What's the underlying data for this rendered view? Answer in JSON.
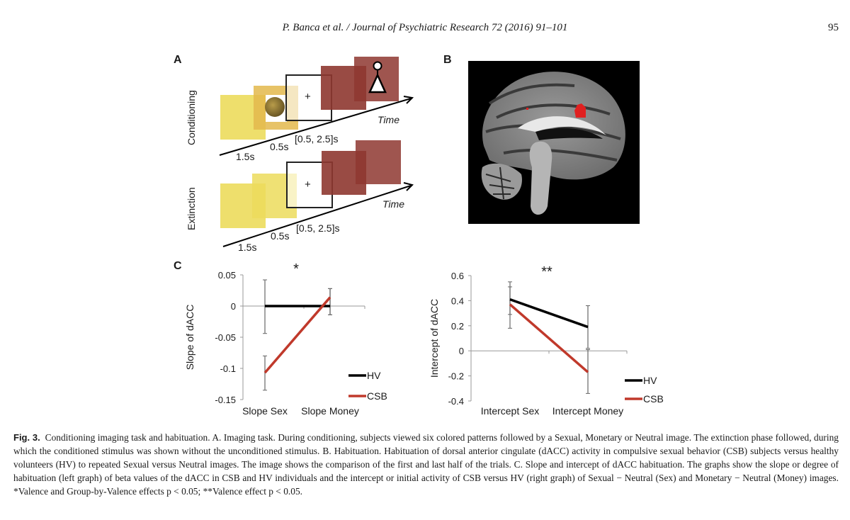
{
  "header": {
    "running_title": "P. Banca et al. / Journal of Psychiatric Research 72 (2016) 91–101",
    "page_number": "95"
  },
  "panel_a": {
    "letter": "A",
    "rows": [
      {
        "label": "Conditioning",
        "t1": "1.5s",
        "t2": "0.5s",
        "t3": "[0.5, 2.5]s",
        "time": "Time",
        "fixation": "+"
      },
      {
        "label": "Extinction",
        "t1": "1.5s",
        "t2": "0.5s",
        "t3": "[0.5, 2.5]s",
        "time": "Time",
        "fixation": "+"
      }
    ],
    "colors": {
      "yellow": "#ecdc5c",
      "gold": "#e3b84c",
      "maroon": "#8e3730"
    }
  },
  "panel_b": {
    "letter": "B"
  },
  "panel_c": {
    "letter": "C"
  },
  "chart_data": [
    {
      "type": "line",
      "title": "",
      "annotation": "*",
      "categories": [
        "Slope Sex",
        "Slope Money"
      ],
      "ylabel": "Slope of dACC",
      "xlabel": "",
      "ylim": [
        -0.15,
        0.05
      ],
      "yticks": [
        "0.05",
        "0",
        "-0.05",
        "-0.1",
        "-0.15"
      ],
      "ytick_values": [
        0.05,
        0,
        -0.05,
        -0.1,
        -0.15
      ],
      "legend_position": "bottom-right",
      "series": [
        {
          "name": "HV",
          "color": "#000000",
          "values": [
            0.0,
            0.0
          ],
          "err_low": [
            -0.044,
            -0.014
          ],
          "err_high": [
            0.042,
            0.028
          ]
        },
        {
          "name": "CSB",
          "color": "#c0392b",
          "values": [
            -0.107,
            0.014
          ],
          "err_low": [
            -0.135,
            -0.014
          ],
          "err_high": [
            -0.08,
            0.028
          ]
        }
      ]
    },
    {
      "type": "line",
      "title": "",
      "annotation": "**",
      "categories": [
        "Intercept Sex",
        "Intercept Money"
      ],
      "ylabel": "Intercept of dACC",
      "xlabel": "",
      "ylim": [
        -0.4,
        0.6
      ],
      "yticks": [
        "0.6",
        "0.4",
        "0.2",
        "0",
        "-0.2",
        "-0.4"
      ],
      "ytick_values": [
        0.6,
        0.4,
        0.2,
        0,
        -0.2,
        -0.4
      ],
      "legend_position": "bottom-right",
      "series": [
        {
          "name": "HV",
          "color": "#000000",
          "values": [
            0.41,
            0.19
          ],
          "err_low": [
            0.18,
            0.02
          ],
          "err_high": [
            0.55,
            0.36
          ]
        },
        {
          "name": "CSB",
          "color": "#c0392b",
          "values": [
            0.37,
            -0.17
          ],
          "err_low": [
            0.29,
            -0.34
          ],
          "err_high": [
            0.51,
            0.01
          ]
        }
      ]
    }
  ],
  "caption": {
    "label": "Fig. 3.",
    "text": "Conditioning imaging task and habituation. A. Imaging task. During conditioning, subjects viewed six colored patterns followed by a Sexual, Monetary or Neutral image. The extinction phase followed, during which the conditioned stimulus was shown without the unconditioned stimulus. B. Habituation. Habituation of dorsal anterior cingulate (dACC) activity in compulsive sexual behavior (CSB) subjects versus healthy volunteers (HV) to repeated Sexual versus Neutral images. The image shows the comparison of the first and last half of the trials. C. Slope and intercept of dACC habituation. The graphs show the slope or degree of habituation (left graph) of beta values of the dACC in CSB and HV individuals and the intercept or initial activity of CSB versus HV (right graph) of Sexual − Neutral (Sex) and Monetary − Neutral (Money) images. *Valence and Group-by-Valence effects p < 0.05; **Valence effect p < 0.05."
  }
}
